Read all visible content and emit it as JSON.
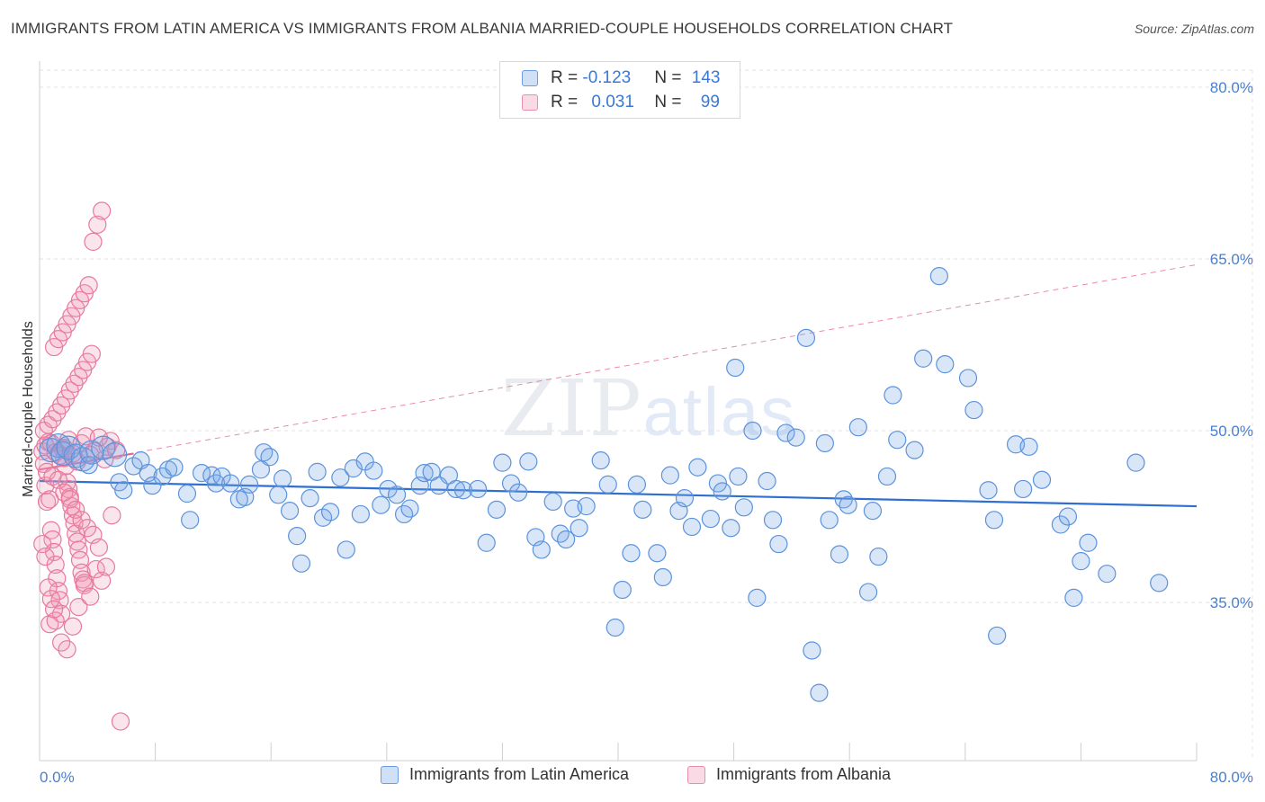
{
  "title": "IMMIGRANTS FROM LATIN AMERICA VS IMMIGRANTS FROM ALBANIA MARRIED-COUPLE HOUSEHOLDS CORRELATION CHART",
  "source": "Source: ZipAtlas.com",
  "watermark": {
    "zip": "ZIP",
    "atlas": "atlas"
  },
  "colors": {
    "blue": "#5b93dd",
    "blue_fill": "rgba(120,165,230,0.28)",
    "blue_line": "#2f6fd0",
    "pink": "#e8799d",
    "pink_fill": "rgba(240,150,180,0.25)",
    "pink_line": "#e0668f",
    "grid": "#e3e3e3",
    "tick_text": "#4a7fd0"
  },
  "legend": {
    "rows": [
      {
        "r_label": "R = ",
        "r_value": "-0.123",
        "n_label": "N = ",
        "n_value": "143"
      },
      {
        "r_label": "R = ",
        "r_value": "0.031",
        "n_label": "N = ",
        "n_value": "99"
      }
    ]
  },
  "chart_data": {
    "type": "scatter",
    "title": "IMMIGRANTS FROM LATIN AMERICA VS IMMIGRANTS FROM ALBANIA MARRIED-COUPLE HOUSEHOLDS CORRELATION CHART",
    "xlabel": "",
    "ylabel": "Married-couple Households",
    "xlim": [
      0,
      80
    ],
    "ylim": [
      20,
      82
    ],
    "x_tick_labels": [
      "0.0%",
      "80.0%"
    ],
    "y_tick_labels": [
      "80.0%",
      "65.0%",
      "50.0%",
      "35.0%"
    ],
    "y_ticks": [
      80,
      65,
      50,
      35
    ],
    "grid": true,
    "legend_position": "top-center",
    "series": [
      {
        "name": "Immigrants from Latin America",
        "trend": {
          "x": [
            0,
            80
          ],
          "y": [
            45.6,
            43.4
          ],
          "style": "solid"
        },
        "points": [
          [
            0.8,
            48.3
          ],
          [
            1.3,
            48.7
          ],
          [
            1.6,
            48.0
          ],
          [
            2.0,
            48.5
          ],
          [
            2.5,
            47.8
          ],
          [
            3.0,
            47.5
          ],
          [
            3.6,
            48.1
          ],
          [
            4.4,
            48.5
          ],
          [
            5.2,
            47.9
          ],
          [
            3.4,
            47.0
          ],
          [
            5.5,
            45.5
          ],
          [
            5.8,
            44.8
          ],
          [
            6.5,
            46.9
          ],
          [
            7.0,
            47.4
          ],
          [
            7.5,
            46.3
          ],
          [
            7.8,
            45.2
          ],
          [
            8.5,
            46.0
          ],
          [
            8.9,
            46.6
          ],
          [
            9.3,
            46.8
          ],
          [
            10.2,
            44.5
          ],
          [
            10.4,
            42.2
          ],
          [
            11.2,
            46.3
          ],
          [
            11.9,
            46.1
          ],
          [
            12.2,
            45.4
          ],
          [
            12.6,
            46.0
          ],
          [
            13.2,
            45.4
          ],
          [
            13.8,
            44.0
          ],
          [
            14.2,
            44.2
          ],
          [
            14.5,
            45.3
          ],
          [
            15.3,
            46.6
          ],
          [
            15.5,
            48.1
          ],
          [
            15.9,
            47.7
          ],
          [
            16.5,
            44.4
          ],
          [
            16.8,
            45.8
          ],
          [
            17.3,
            43.0
          ],
          [
            17.8,
            40.8
          ],
          [
            18.1,
            38.4
          ],
          [
            18.7,
            44.1
          ],
          [
            19.2,
            46.4
          ],
          [
            19.6,
            42.4
          ],
          [
            20.1,
            42.9
          ],
          [
            20.8,
            45.9
          ],
          [
            21.2,
            39.6
          ],
          [
            21.7,
            46.7
          ],
          [
            22.2,
            42.7
          ],
          [
            22.5,
            47.3
          ],
          [
            23.1,
            46.5
          ],
          [
            23.6,
            43.5
          ],
          [
            24.1,
            44.9
          ],
          [
            24.7,
            44.4
          ],
          [
            25.2,
            42.7
          ],
          [
            25.6,
            43.2
          ],
          [
            26.3,
            45.2
          ],
          [
            26.6,
            46.3
          ],
          [
            27.1,
            46.4
          ],
          [
            27.6,
            45.2
          ],
          [
            28.3,
            46.1
          ],
          [
            28.8,
            44.9
          ],
          [
            29.3,
            44.8
          ],
          [
            30.3,
            44.9
          ],
          [
            30.9,
            40.2
          ],
          [
            31.6,
            43.1
          ],
          [
            32.0,
            47.2
          ],
          [
            32.6,
            45.4
          ],
          [
            33.1,
            44.6
          ],
          [
            33.8,
            47.3
          ],
          [
            34.3,
            40.7
          ],
          [
            34.7,
            39.6
          ],
          [
            35.5,
            43.8
          ],
          [
            36.0,
            41.0
          ],
          [
            36.4,
            40.5
          ],
          [
            36.9,
            43.2
          ],
          [
            37.3,
            41.5
          ],
          [
            37.8,
            43.4
          ],
          [
            38.8,
            47.4
          ],
          [
            39.3,
            45.3
          ],
          [
            39.8,
            32.8
          ],
          [
            40.3,
            36.1
          ],
          [
            40.9,
            39.3
          ],
          [
            41.3,
            45.3
          ],
          [
            41.7,
            43.1
          ],
          [
            42.7,
            39.3
          ],
          [
            43.1,
            37.2
          ],
          [
            43.6,
            46.1
          ],
          [
            44.2,
            43.0
          ],
          [
            44.6,
            44.1
          ],
          [
            45.1,
            41.6
          ],
          [
            45.5,
            46.8
          ],
          [
            46.4,
            42.3
          ],
          [
            46.9,
            45.4
          ],
          [
            47.2,
            44.7
          ],
          [
            47.8,
            41.5
          ],
          [
            48.1,
            55.5
          ],
          [
            48.3,
            46.0
          ],
          [
            48.7,
            43.3
          ],
          [
            49.3,
            50.0
          ],
          [
            49.6,
            35.4
          ],
          [
            50.3,
            45.6
          ],
          [
            50.7,
            42.2
          ],
          [
            51.1,
            40.1
          ],
          [
            51.6,
            49.8
          ],
          [
            52.3,
            49.4
          ],
          [
            53.0,
            58.1
          ],
          [
            53.4,
            30.8
          ],
          [
            53.9,
            27.1
          ],
          [
            54.3,
            48.9
          ],
          [
            54.6,
            42.2
          ],
          [
            55.3,
            39.2
          ],
          [
            55.6,
            44.0
          ],
          [
            55.9,
            43.5
          ],
          [
            56.6,
            50.3
          ],
          [
            57.3,
            35.9
          ],
          [
            57.6,
            43.0
          ],
          [
            58.0,
            39.0
          ],
          [
            58.6,
            46.0
          ],
          [
            59.0,
            53.1
          ],
          [
            59.3,
            49.2
          ],
          [
            60.5,
            48.3
          ],
          [
            61.1,
            56.3
          ],
          [
            62.2,
            63.5
          ],
          [
            62.6,
            55.8
          ],
          [
            64.2,
            54.6
          ],
          [
            64.6,
            51.8
          ],
          [
            65.6,
            44.8
          ],
          [
            66.0,
            42.2
          ],
          [
            66.2,
            32.1
          ],
          [
            67.5,
            48.8
          ],
          [
            68.0,
            44.9
          ],
          [
            68.4,
            48.6
          ],
          [
            69.3,
            45.7
          ],
          [
            70.6,
            41.8
          ],
          [
            71.1,
            42.5
          ],
          [
            71.5,
            35.4
          ],
          [
            72.0,
            38.6
          ],
          [
            72.5,
            40.2
          ],
          [
            73.8,
            37.5
          ],
          [
            75.8,
            47.2
          ],
          [
            77.4,
            36.7
          ]
        ]
      },
      {
        "name": "Immigrants from Albania",
        "trend": {
          "x": [
            0,
            6.5
          ],
          "y": [
            46.6,
            48.0
          ],
          "style": "solid",
          "extended": {
            "x": [
              0,
              80
            ],
            "y": [
              46.6,
              64.5
            ],
            "style": "dashed"
          }
        },
        "points": [
          [
            0.2,
            48.2
          ],
          [
            0.3,
            47.1
          ],
          [
            0.4,
            45.2
          ],
          [
            0.5,
            43.8
          ],
          [
            0.6,
            49.0
          ],
          [
            0.7,
            44.0
          ],
          [
            0.8,
            41.3
          ],
          [
            0.9,
            40.5
          ],
          [
            1.0,
            39.4
          ],
          [
            1.1,
            38.3
          ],
          [
            1.2,
            37.1
          ],
          [
            1.3,
            36.0
          ],
          [
            1.4,
            35.2
          ],
          [
            1.5,
            34.0
          ],
          [
            1.6,
            48.4
          ],
          [
            1.7,
            47.6
          ],
          [
            1.8,
            46.9
          ],
          [
            1.9,
            45.5
          ],
          [
            2.0,
            44.9
          ],
          [
            2.1,
            44.2
          ],
          [
            2.2,
            43.4
          ],
          [
            2.3,
            42.6
          ],
          [
            2.4,
            41.9
          ],
          [
            2.5,
            41.0
          ],
          [
            2.6,
            40.3
          ],
          [
            2.7,
            39.6
          ],
          [
            2.8,
            38.7
          ],
          [
            2.9,
            37.6
          ],
          [
            3.0,
            37.0
          ],
          [
            3.1,
            36.5
          ],
          [
            0.3,
            50.0
          ],
          [
            0.6,
            50.5
          ],
          [
            0.9,
            51.0
          ],
          [
            1.2,
            51.6
          ],
          [
            1.5,
            52.2
          ],
          [
            1.8,
            52.8
          ],
          [
            2.1,
            53.5
          ],
          [
            2.4,
            54.1
          ],
          [
            2.7,
            54.7
          ],
          [
            3.0,
            55.3
          ],
          [
            3.3,
            56.0
          ],
          [
            3.6,
            56.7
          ],
          [
            1.0,
            57.3
          ],
          [
            1.3,
            58.0
          ],
          [
            1.6,
            58.6
          ],
          [
            1.9,
            59.3
          ],
          [
            2.2,
            60.0
          ],
          [
            2.5,
            60.7
          ],
          [
            2.8,
            61.4
          ],
          [
            3.1,
            62.0
          ],
          [
            3.4,
            62.7
          ],
          [
            3.7,
            66.5
          ],
          [
            4.0,
            68.0
          ],
          [
            4.3,
            69.2
          ],
          [
            4.5,
            47.5
          ],
          [
            4.7,
            48.6
          ],
          [
            4.9,
            49.1
          ],
          [
            5.0,
            42.6
          ],
          [
            5.3,
            48.3
          ],
          [
            5.6,
            24.6
          ],
          [
            0.4,
            48.7
          ],
          [
            0.8,
            48.9
          ],
          [
            1.1,
            48.1
          ],
          [
            1.4,
            47.8
          ],
          [
            1.7,
            48.5
          ],
          [
            2.0,
            49.2
          ],
          [
            2.3,
            48.0
          ],
          [
            2.6,
            47.3
          ],
          [
            2.9,
            48.9
          ],
          [
            3.2,
            49.5
          ],
          [
            3.5,
            47.9
          ],
          [
            3.8,
            48.2
          ],
          [
            4.1,
            49.4
          ],
          [
            0.5,
            46.4
          ],
          [
            0.9,
            46.0
          ],
          [
            1.3,
            45.7
          ],
          [
            1.7,
            44.6
          ],
          [
            2.1,
            44.0
          ],
          [
            2.5,
            43.1
          ],
          [
            2.9,
            42.2
          ],
          [
            3.3,
            41.5
          ],
          [
            3.7,
            40.9
          ],
          [
            4.1,
            39.8
          ],
          [
            0.7,
            33.1
          ],
          [
            1.1,
            33.4
          ],
          [
            1.5,
            31.5
          ],
          [
            1.9,
            30.9
          ],
          [
            2.3,
            32.9
          ],
          [
            2.7,
            34.6
          ],
          [
            3.1,
            36.7
          ],
          [
            3.5,
            35.5
          ],
          [
            3.9,
            37.9
          ],
          [
            4.3,
            36.9
          ],
          [
            4.6,
            38.1
          ],
          [
            0.2,
            40.1
          ],
          [
            0.4,
            39.0
          ],
          [
            0.6,
            36.3
          ],
          [
            0.8,
            35.3
          ],
          [
            1.0,
            34.4
          ]
        ]
      }
    ]
  },
  "bottom_legend": [
    {
      "label": "Immigrants from Latin America"
    },
    {
      "label": "Immigrants from Albania"
    }
  ]
}
